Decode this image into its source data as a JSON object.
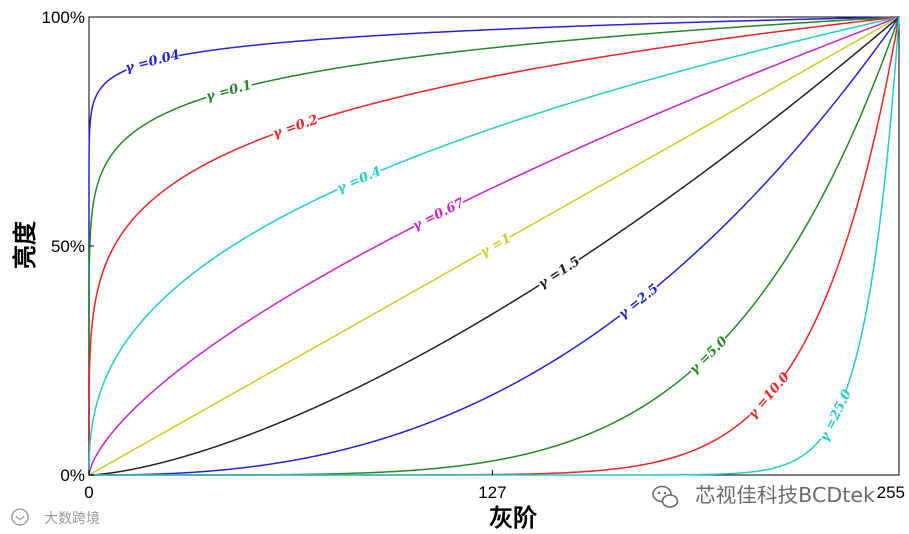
{
  "chart_data": {
    "type": "line",
    "title": "",
    "xlabel": "灰阶",
    "ylabel": "亮度",
    "xlim": [
      0,
      255
    ],
    "ylim": [
      0,
      1
    ],
    "x_ticks": [
      {
        "value": 0,
        "label": "0"
      },
      {
        "value": 127,
        "label": "127"
      },
      {
        "value": 255,
        "label": "255"
      }
    ],
    "y_ticks": [
      {
        "value": 0,
        "label": "0%"
      },
      {
        "value": 0.5,
        "label": "50%"
      },
      {
        "value": 1,
        "label": "100%"
      }
    ],
    "function": "y = (x/255)^gamma",
    "series": [
      {
        "gamma": 0.04,
        "label": "γ =0.04",
        "color": "#2222dd",
        "label_x": 20
      },
      {
        "gamma": 0.1,
        "label": "γ =0.1",
        "color": "#228822",
        "label_x": 44
      },
      {
        "gamma": 0.2,
        "label": "γ =0.2",
        "color": "#ee2222",
        "label_x": 65
      },
      {
        "gamma": 0.4,
        "label": "γ =0.4",
        "color": "#22cccc",
        "label_x": 85
      },
      {
        "gamma": 0.67,
        "label": "γ =0.67",
        "color": "#cc22cc",
        "label_x": 110
      },
      {
        "gamma": 1,
        "label": "γ =1",
        "color": "#cccc22",
        "label_x": 128
      },
      {
        "gamma": 1.5,
        "label": "γ =1.5",
        "color": "#222222",
        "label_x": 148
      },
      {
        "gamma": 2.5,
        "label": "γ =2.5",
        "color": "#2222dd",
        "label_x": 173
      },
      {
        "gamma": 5.0,
        "label": "γ =5.0",
        "color": "#228822",
        "label_x": 195
      },
      {
        "gamma": 10.0,
        "label": "γ =10.0",
        "color": "#ee2222",
        "label_x": 214
      },
      {
        "gamma": 25.0,
        "label": "γ =25.0",
        "color": "#22cccc",
        "label_x": 235
      }
    ],
    "grid": false,
    "legend": "none"
  },
  "watermarks": {
    "bottom_right": "芯视佳科技BCDtek",
    "bottom_left": "大数跨境"
  }
}
